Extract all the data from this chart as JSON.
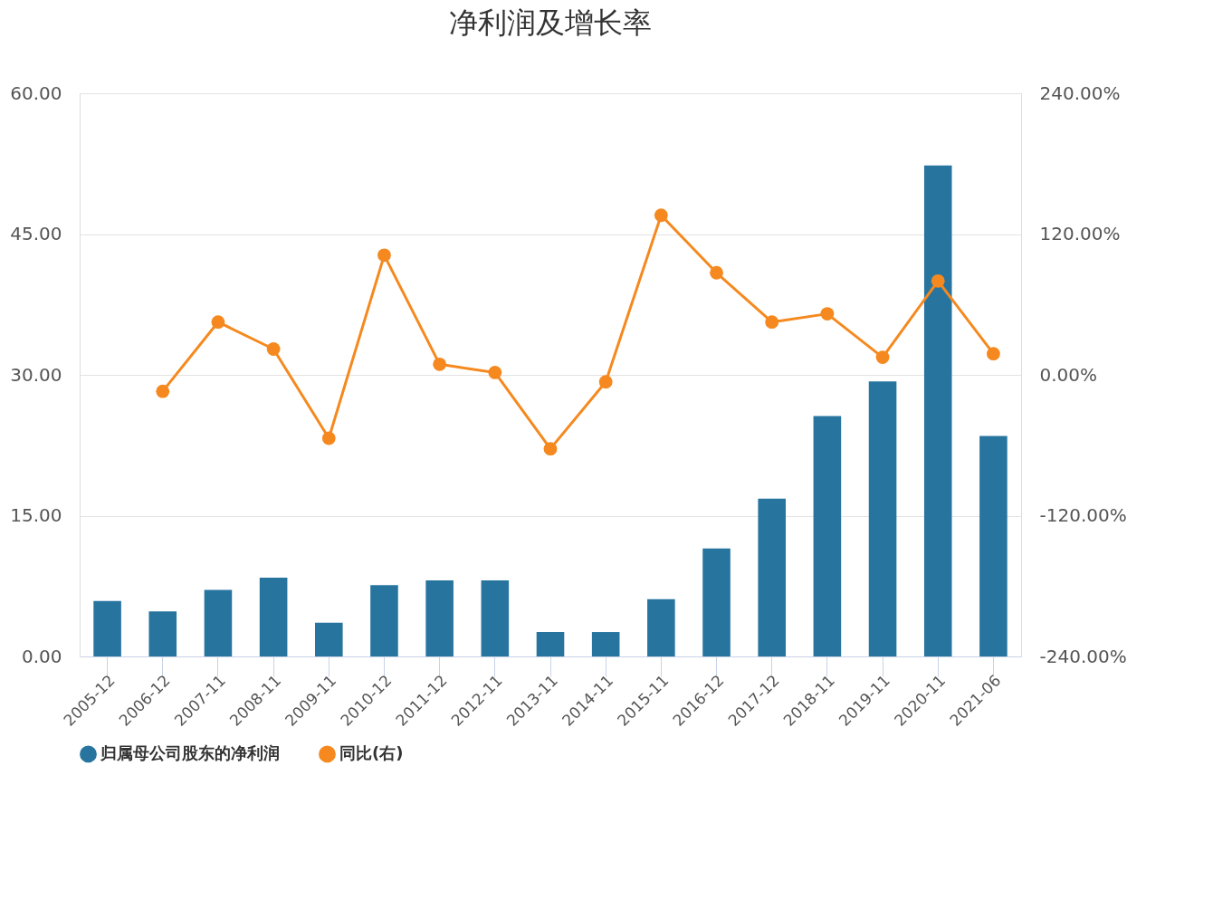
{
  "chart_data": {
    "type": "bar",
    "title": "净利润及增长率",
    "categories": [
      "2005-12",
      "2006-12",
      "2007-11",
      "2008-11",
      "2009-11",
      "2010-12",
      "2011-12",
      "2012-11",
      "2013-11",
      "2014-11",
      "2015-11",
      "2016-12",
      "2017-12",
      "2018-11",
      "2019-11",
      "2020-11",
      "2021-06"
    ],
    "series": [
      {
        "name": "归属母公司股东的净利润",
        "color": "#27759f",
        "values": [
          5.9,
          4.8,
          7.1,
          8.4,
          3.6,
          7.6,
          8.1,
          8.1,
          2.6,
          2.6,
          6.1,
          11.5,
          16.8,
          25.6,
          29.3,
          52.3,
          23.5
        ]
      },
      {
        "name": "同比(右)",
        "color": "#f5891f",
        "type": "line",
        "axis": "y2",
        "values": [
          null,
          -14,
          45,
          22,
          -54,
          102,
          9,
          2,
          -63,
          -6,
          136,
          87,
          45,
          52,
          15,
          80,
          18
        ]
      }
    ],
    "ylim": [
      0,
      60
    ],
    "yticks": [
      {
        "value": 0,
        "label": "0.00"
      },
      {
        "value": 15,
        "label": "15.00"
      },
      {
        "value": 30,
        "label": "30.00"
      },
      {
        "value": 45,
        "label": "45.00"
      },
      {
        "value": 60,
        "label": "60.00"
      }
    ],
    "y2lim": [
      -240,
      240
    ],
    "y2ticks": [
      {
        "value": -240,
        "label": "-240.00%"
      },
      {
        "value": -120,
        "label": "-120.00%"
      },
      {
        "value": 0,
        "label": "0.00%"
      },
      {
        "value": 120,
        "label": "120.00%"
      },
      {
        "value": 240,
        "label": "240.00%"
      }
    ],
    "grid": "y",
    "legend": "bottom",
    "marker": "circle"
  }
}
